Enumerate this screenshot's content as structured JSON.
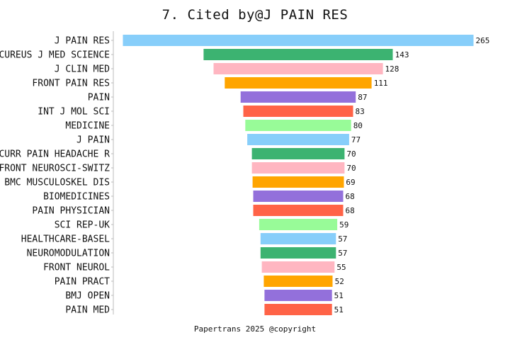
{
  "chart_data": {
    "type": "bar",
    "orientation": "horizontal-centered",
    "title": "7. Cited by@J PAIN RES",
    "footer": "Papertrans 2025 @copyright",
    "categories": [
      "J PAIN RES",
      "CUREUS J MED SCIENCE",
      "J CLIN MED",
      "FRONT PAIN RES",
      "PAIN",
      "INT J MOL SCI",
      "MEDICINE",
      "J PAIN",
      "CURR PAIN HEADACHE R",
      "FRONT NEUROSCI-SWITZ",
      "BMC MUSCULOSKEL DIS",
      "BIOMEDICINES",
      "PAIN PHYSICIAN",
      "SCI REP-UK",
      "HEALTHCARE-BASEL",
      "NEUROMODULATION",
      "FRONT NEUROL",
      "PAIN PRACT",
      "BMJ OPEN",
      "PAIN MED"
    ],
    "values": [
      265,
      143,
      128,
      111,
      87,
      83,
      80,
      77,
      70,
      70,
      69,
      68,
      68,
      59,
      57,
      57,
      55,
      52,
      51,
      51
    ],
    "colors": [
      "#87CEFA",
      "#3CB371",
      "#FFB6C1",
      "#FFA500",
      "#9370DB",
      "#FF6347",
      "#98FB98"
    ],
    "grid": false,
    "legend": "none"
  }
}
